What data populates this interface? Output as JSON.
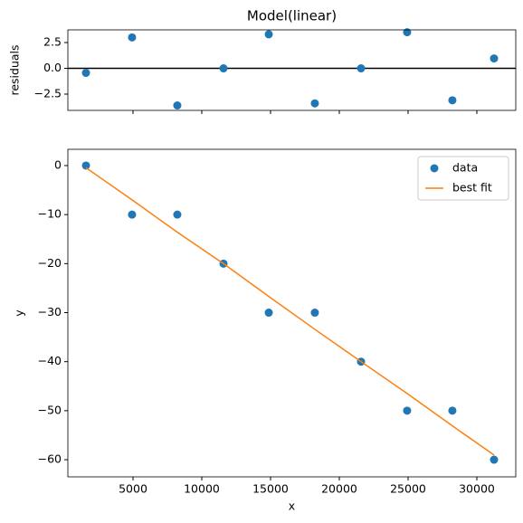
{
  "chart_data": [
    {
      "type": "scatter",
      "title": "Model(linear)",
      "ylabel": "residuals",
      "x": [
        1580,
        4930,
        8220,
        11580,
        14870,
        18220,
        21580,
        24930,
        28220,
        31250
      ],
      "values": [
        -0.44,
        3.0,
        -3.6,
        0.0,
        3.3,
        -3.4,
        0.0,
        3.5,
        -3.1,
        0.96
      ],
      "color": "#1f77b4",
      "hline": 0,
      "xlim": [
        263,
        32829
      ],
      "xticks": [
        5000,
        10000,
        15000,
        20000,
        25000,
        30000
      ],
      "show_xtick_labels": false,
      "ylim": [
        -4.08,
        3.73
      ],
      "yticks": [
        {
          "value": -2.5,
          "label": "−2.5"
        },
        {
          "value": 0,
          "label": "0.0"
        },
        2.5
      ]
    },
    {
      "type": "scatter",
      "xlabel": "x",
      "ylabel": "y",
      "x": [
        1580,
        4930,
        8220,
        11580,
        14870,
        18220,
        21580,
        24930,
        28220,
        31250
      ],
      "series": [
        {
          "name": "data",
          "color": "#1f77b4",
          "mode": "markers",
          "values": [
            0,
            -10,
            -10,
            -20,
            -30,
            -30,
            -40,
            -50,
            -50,
            -60
          ]
        },
        {
          "name": "best fit",
          "color": "#ff7f0e",
          "mode": "line",
          "values": [
            -0.44,
            -7.0,
            -13.6,
            -20.0,
            -26.7,
            -33.4,
            -40.0,
            -46.5,
            -53.1,
            -59.04
          ]
        }
      ],
      "xlim": [
        263,
        32829
      ],
      "xticks": [
        5000,
        10000,
        15000,
        20000,
        25000,
        30000
      ],
      "show_xtick_labels": true,
      "ylim": [
        -63.5,
        3.32
      ],
      "yticks": [
        {
          "value": -60,
          "label": "−60"
        },
        {
          "value": -50,
          "label": "−50"
        },
        {
          "value": -40,
          "label": "−40"
        },
        {
          "value": -30,
          "label": "−30"
        },
        {
          "value": -20,
          "label": "−20"
        },
        {
          "value": -10,
          "label": "−10"
        },
        0
      ],
      "legend": "upper right"
    }
  ]
}
